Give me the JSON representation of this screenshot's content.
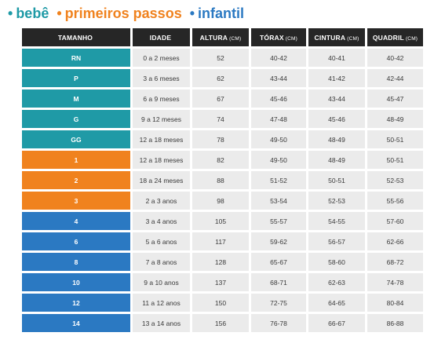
{
  "legend": [
    {
      "dot": "•",
      "label": "bebê",
      "color": "#1f9aa6"
    },
    {
      "dot": "•",
      "label": "primeiros passos",
      "color": "#f0821e"
    },
    {
      "dot": "•",
      "label": "infantil",
      "color": "#2b79c2"
    }
  ],
  "columns": [
    {
      "label": "TAMANHO",
      "unit": ""
    },
    {
      "label": "IDADE",
      "unit": ""
    },
    {
      "label": "ALTURA",
      "unit": "(CM)"
    },
    {
      "label": "TÓRAX",
      "unit": "(CM)"
    },
    {
      "label": "CINTURA",
      "unit": "(CM)"
    },
    {
      "label": "QUADRIL",
      "unit": "(CM)"
    }
  ],
  "rows": [
    {
      "group": 0,
      "size": "RN",
      "age": "0 a 2 meses",
      "height": "52",
      "chest": "40-42",
      "waist": "40-41",
      "hip": "40-42"
    },
    {
      "group": 0,
      "size": "P",
      "age": "3 a 6 meses",
      "height": "62",
      "chest": "43-44",
      "waist": "41-42",
      "hip": "42-44"
    },
    {
      "group": 0,
      "size": "M",
      "age": "6 a 9 meses",
      "height": "67",
      "chest": "45-46",
      "waist": "43-44",
      "hip": "45-47"
    },
    {
      "group": 0,
      "size": "G",
      "age": "9 a 12 meses",
      "height": "74",
      "chest": "47-48",
      "waist": "45-46",
      "hip": "48-49"
    },
    {
      "group": 0,
      "size": "GG",
      "age": "12 a 18 meses",
      "height": "78",
      "chest": "49-50",
      "waist": "48-49",
      "hip": "50-51"
    },
    {
      "group": 1,
      "size": "1",
      "age": "12 a 18 meses",
      "height": "82",
      "chest": "49-50",
      "waist": "48-49",
      "hip": "50-51"
    },
    {
      "group": 1,
      "size": "2",
      "age": "18 a 24 meses",
      "height": "88",
      "chest": "51-52",
      "waist": "50-51",
      "hip": "52-53"
    },
    {
      "group": 1,
      "size": "3",
      "age": "2 a 3 anos",
      "height": "98",
      "chest": "53-54",
      "waist": "52-53",
      "hip": "55-56"
    },
    {
      "group": 2,
      "size": "4",
      "age": "3 a 4 anos",
      "height": "105",
      "chest": "55-57",
      "waist": "54-55",
      "hip": "57-60"
    },
    {
      "group": 2,
      "size": "6",
      "age": "5 a 6 anos",
      "height": "117",
      "chest": "59-62",
      "waist": "56-57",
      "hip": "62-66"
    },
    {
      "group": 2,
      "size": "8",
      "age": "7 a 8 anos",
      "height": "128",
      "chest": "65-67",
      "waist": "58-60",
      "hip": "68-72"
    },
    {
      "group": 2,
      "size": "10",
      "age": "9 a 10 anos",
      "height": "137",
      "chest": "68-71",
      "waist": "62-63",
      "hip": "74-78"
    },
    {
      "group": 2,
      "size": "12",
      "age": "11 a 12 anos",
      "height": "150",
      "chest": "72-75",
      "waist": "64-65",
      "hip": "80-84"
    },
    {
      "group": 2,
      "size": "14",
      "age": "13 a 14 anos",
      "height": "156",
      "chest": "76-78",
      "waist": "66-67",
      "hip": "86-88"
    }
  ],
  "colors": {
    "header_bg": "#262626",
    "header_text": "#ffffff",
    "cell_bg": "#ebebeb",
    "cell_text": "#3a3a3a"
  }
}
